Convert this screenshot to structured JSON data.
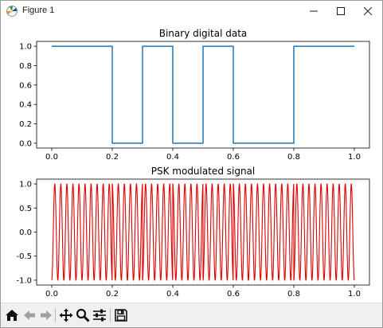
{
  "window": {
    "title": "Figure 1"
  },
  "toolbar": {
    "buttons": [
      {
        "name": "home-button",
        "icon": "home-icon"
      },
      {
        "name": "back-button",
        "icon": "arrow-left-icon"
      },
      {
        "name": "forward-button",
        "icon": "arrow-right-icon"
      },
      {
        "name": "pan-button",
        "icon": "move-icon"
      },
      {
        "name": "zoom-button",
        "icon": "magnifier-icon"
      },
      {
        "name": "configure-subplots-button",
        "icon": "sliders-icon"
      },
      {
        "name": "save-button",
        "icon": "floppy-disk-icon"
      }
    ]
  },
  "chart_data": [
    {
      "type": "line",
      "title": "Binary digital data",
      "xlabel": "",
      "ylabel": "",
      "xlim": [
        -0.05,
        1.05
      ],
      "ylim": [
        -0.05,
        1.05
      ],
      "x_ticks": [
        "0.0",
        "0.2",
        "0.4",
        "0.6",
        "0.8",
        "1.0"
      ],
      "y_ticks": [
        "0.0",
        "0.2",
        "0.4",
        "0.6",
        "0.8",
        "1.0"
      ],
      "series": [
        {
          "color": "#1f77b4",
          "x": [
            0.0,
            0.2,
            0.2,
            0.3,
            0.3,
            0.4,
            0.4,
            0.5,
            0.5,
            0.6,
            0.6,
            0.8,
            0.8,
            1.0
          ],
          "y": [
            1,
            1,
            0,
            0,
            1,
            1,
            0,
            0,
            1,
            1,
            0,
            0,
            1,
            1
          ]
        }
      ],
      "bits": [
        1,
        1,
        0,
        1,
        0,
        1,
        0,
        0,
        1,
        1
      ],
      "grid": false
    },
    {
      "type": "line",
      "title": "PSK modulated signal",
      "xlabel": "",
      "ylabel": "",
      "xlim": [
        -0.05,
        1.05
      ],
      "ylim": [
        -1.1,
        1.1
      ],
      "x_ticks": [
        "0.0",
        "0.2",
        "0.4",
        "0.6",
        "0.8",
        "1.0"
      ],
      "y_ticks": [
        "-1.0",
        "-0.5",
        "0.0",
        "0.5",
        "1.0"
      ],
      "series": [
        {
          "color": "#e00000",
          "carrier_cycles": 50,
          "x_range": [
            0.0,
            1.0
          ],
          "phase_shifts_at": [
            0.2,
            0.4,
            0.6
          ]
        }
      ],
      "grid": false
    }
  ]
}
